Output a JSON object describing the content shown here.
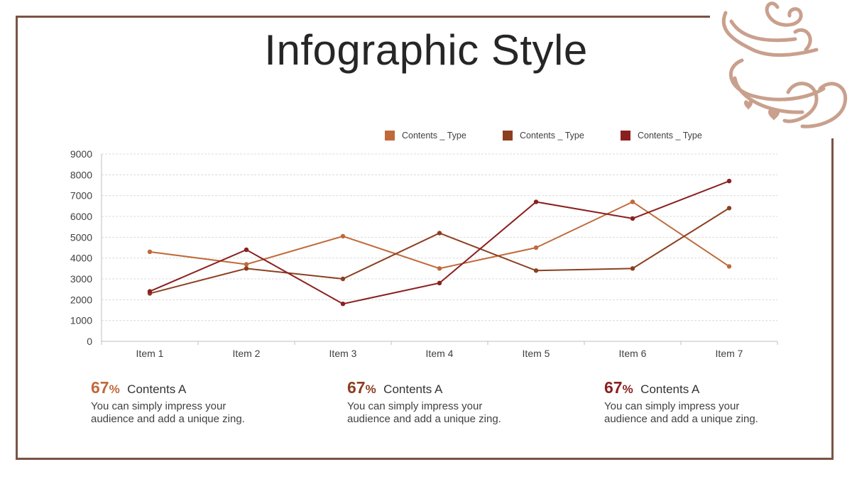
{
  "slide": {
    "title": "Infographic Style",
    "frame_color": "#7a5344",
    "decoration_icon": "coffee-cup-hearts-icon"
  },
  "chart_data": {
    "type": "line",
    "categories": [
      "Item 1",
      "Item 2",
      "Item 3",
      "Item 4",
      "Item 5",
      "Item 6",
      "Item 7"
    ],
    "series": [
      {
        "name": "Contents _ Type",
        "color": "#c0693a",
        "values": [
          4300,
          3700,
          5050,
          3500,
          4500,
          6700,
          3600
        ]
      },
      {
        "name": "Contents _ Type",
        "color": "#8b3f1f",
        "values": [
          2300,
          3500,
          3000,
          5200,
          3400,
          3500,
          6400
        ]
      },
      {
        "name": "Contents _ Type",
        "color": "#8b1f1f",
        "values": [
          2400,
          4400,
          1800,
          2800,
          6700,
          5900,
          7700
        ]
      }
    ],
    "yticks": [
      "0",
      "1000",
      "2000",
      "3000",
      "4000",
      "5000",
      "6000",
      "7000",
      "8000",
      "9000"
    ],
    "ylim": [
      0,
      9000
    ],
    "grid": true,
    "legend": "top"
  },
  "info": [
    {
      "pct": "67",
      "pct_sym": "%",
      "heading": "Contents A",
      "line1": "You can simply impress your",
      "line2": "audience and add a unique zing.",
      "color": "#c0693a"
    },
    {
      "pct": "67",
      "pct_sym": "%",
      "heading": "Contents A",
      "line1": "You can simply impress your",
      "line2": "audience and add a unique zing.",
      "color": "#8b3f1f"
    },
    {
      "pct": "67",
      "pct_sym": "%",
      "heading": "Contents A",
      "line1": "You can simply impress your",
      "line2": "audience and add a unique zing.",
      "color": "#8b1f1f"
    }
  ]
}
